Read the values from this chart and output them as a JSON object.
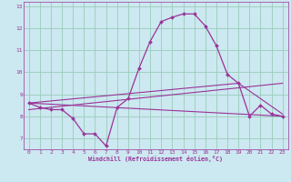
{
  "background_color": "#cce8f0",
  "grid_color": "#99ccbb",
  "line_color": "#993399",
  "marker_color": "#993399",
  "xlabel": "Windchill (Refroidissement éolien,°C)",
  "xlabel_color": "#993399",
  "tick_color": "#993399",
  "xlim": [
    -0.5,
    23.5
  ],
  "ylim": [
    6.5,
    13.2
  ],
  "yticks": [
    7,
    8,
    9,
    10,
    11,
    12,
    13
  ],
  "xticks": [
    0,
    1,
    2,
    3,
    4,
    5,
    6,
    7,
    8,
    9,
    10,
    11,
    12,
    13,
    14,
    15,
    16,
    17,
    18,
    19,
    20,
    21,
    22,
    23
  ],
  "series1_x": [
    0,
    1,
    2,
    3,
    4,
    5,
    6,
    7,
    8,
    9,
    10,
    11,
    12,
    13,
    14,
    15,
    16,
    17,
    18,
    19,
    20,
    21,
    22,
    23
  ],
  "series1_y": [
    8.6,
    8.4,
    8.3,
    8.3,
    7.9,
    7.2,
    7.2,
    6.65,
    8.4,
    8.8,
    10.2,
    11.4,
    12.3,
    12.5,
    12.65,
    12.65,
    12.1,
    11.2,
    9.9,
    9.5,
    8.0,
    8.5,
    8.1,
    8.0
  ],
  "series2_x": [
    0,
    23
  ],
  "series2_y": [
    8.6,
    8.0
  ],
  "series3_x": [
    0,
    23
  ],
  "series3_y": [
    8.3,
    9.5
  ],
  "series4_x": [
    0,
    19,
    23
  ],
  "series4_y": [
    8.6,
    9.5,
    8.1
  ]
}
